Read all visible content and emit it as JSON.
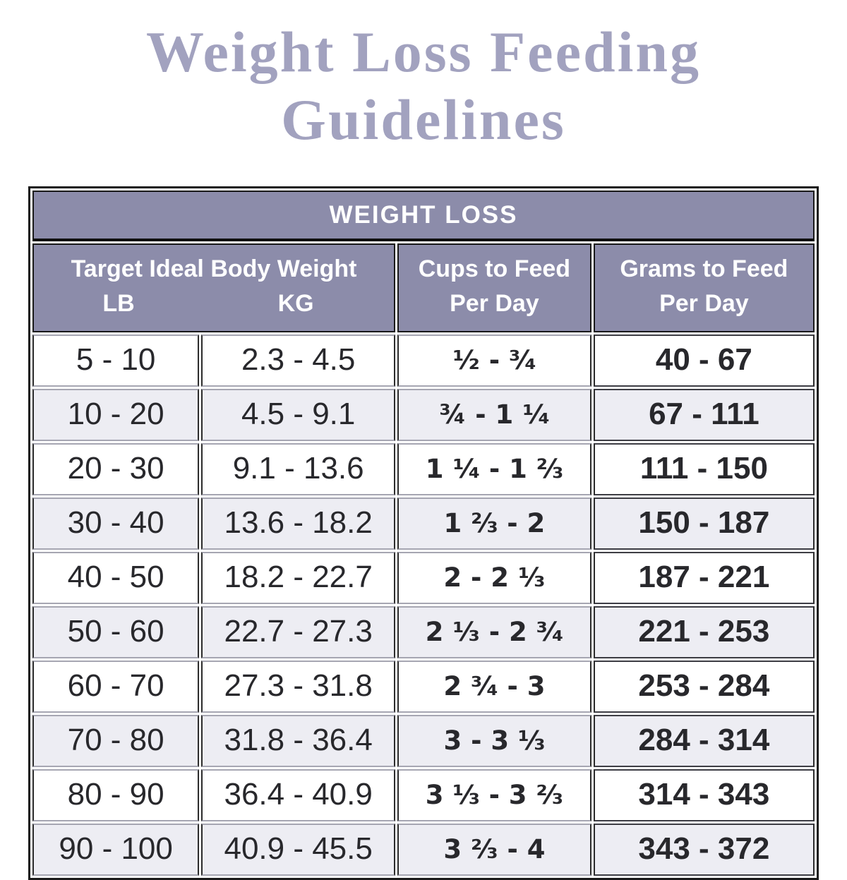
{
  "page": {
    "background": "#ffffff"
  },
  "title": {
    "line1": "Weight Loss Feeding",
    "line2": "Guidelines"
  },
  "colors": {
    "title_text": "#a2a2bf",
    "header_bg": "#8c8caa",
    "header_text": "#ffffff",
    "row_alt_bg": "#ededf3",
    "cell_text": "#28282c"
  },
  "table": {
    "banner_label": "WEIGHT LOSS",
    "header": {
      "weight_group_label": "Target Ideal Body Weight",
      "lb_label": "LB",
      "kg_label": "KG",
      "cups_label_line1": "Cups to Feed",
      "cups_label_line2": "Per Day",
      "grams_label_line1": "Grams to Feed",
      "grams_label_line2": "Per Day"
    },
    "rows": [
      {
        "lb": "5 - 10",
        "kg": "2.3 - 4.5",
        "cups": "¹⁄₂ - ³⁄₄",
        "grams": "40 - 67"
      },
      {
        "lb": "10 - 20",
        "kg": "4.5 - 9.1",
        "cups": "¾ - 1 ¹⁄₄",
        "grams": "67 - 111"
      },
      {
        "lb": "20 - 30",
        "kg": "9.1 - 13.6",
        "cups": "1 ¹⁄₄ - 1 ⅔",
        "grams": "111 - 150"
      },
      {
        "lb": "30 - 40",
        "kg": "13.6 - 18.2",
        "cups": "1 ⅔ - 2",
        "grams": "150 - 187"
      },
      {
        "lb": "40 - 50",
        "kg": "18.2 - 22.7",
        "cups": "2 - 2 ¹⁄₃",
        "grams": "187 - 221"
      },
      {
        "lb": "50 - 60",
        "kg": "22.7 - 27.3",
        "cups": "2 ¹⁄₃ - 2 ³⁄₄",
        "grams": "221 - 253"
      },
      {
        "lb": "60 - 70",
        "kg": "27.3 - 31.8",
        "cups": "2 ³⁄₄ - 3",
        "grams": "253 - 284"
      },
      {
        "lb": "70 - 80",
        "kg": "31.8 - 36.4",
        "cups": "3 - 3 ⅓",
        "grams": "284 - 314"
      },
      {
        "lb": "80 - 90",
        "kg": "36.4 - 40.9",
        "cups": "3 ⅓ - 3 ²⁄₃",
        "grams": "314 - 343"
      },
      {
        "lb": "90 - 100",
        "kg": "40.9 - 45.5",
        "cups": "3 ²⁄₃ - 4",
        "grams": "343 - 372"
      }
    ]
  }
}
